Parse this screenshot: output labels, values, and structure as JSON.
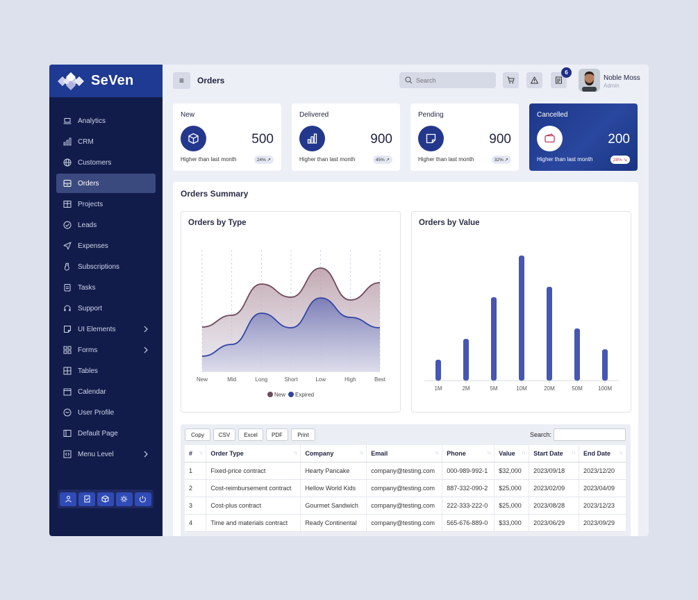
{
  "brand": {
    "name": "SeVen"
  },
  "sidebar": {
    "items": [
      {
        "label": "Analytics",
        "icon": "laptop-icon"
      },
      {
        "label": "CRM",
        "icon": "bar-chart-icon"
      },
      {
        "label": "Customers",
        "icon": "globe-icon"
      },
      {
        "label": "Orders",
        "icon": "inbox-icon",
        "active": true
      },
      {
        "label": "Projects",
        "icon": "kanban-icon"
      },
      {
        "label": "Leads",
        "icon": "check-circle-icon"
      },
      {
        "label": "Expenses",
        "icon": "send-icon"
      },
      {
        "label": "Subscriptions",
        "icon": "hand-icon"
      },
      {
        "label": "Tasks",
        "icon": "clipboard-icon"
      },
      {
        "label": "Support",
        "icon": "headset-icon"
      },
      {
        "label": "UI Elements",
        "icon": "sticky-note-icon",
        "has_submenu": true
      },
      {
        "label": "Forms",
        "icon": "grid-icon",
        "has_submenu": true
      },
      {
        "label": "Tables",
        "icon": "table-icon"
      },
      {
        "label": "Calendar",
        "icon": "calendar-icon"
      },
      {
        "label": "User Profile",
        "icon": "user-circle-icon"
      },
      {
        "label": "Default Page",
        "icon": "page-icon"
      },
      {
        "label": "Menu Level",
        "icon": "code-icon",
        "has_submenu": true
      }
    ],
    "footer_buttons": [
      "user-icon",
      "clipboard-icon",
      "box-icon",
      "gear-icon",
      "power-icon"
    ]
  },
  "header": {
    "title": "Orders",
    "search_placeholder": "Search",
    "notification_count": "6",
    "user_name": "Noble Moss",
    "user_role": "Admin"
  },
  "cards": [
    {
      "title": "New",
      "value": "500",
      "footer": "Higher than last month",
      "percent": "24% ↗",
      "icon": "box-icon"
    },
    {
      "title": "Delivered",
      "value": "900",
      "footer": "Higher than last month",
      "percent": "45% ↗",
      "icon": "bar-chart-icon"
    },
    {
      "title": "Pending",
      "value": "900",
      "footer": "Higher than last month",
      "percent": "32% ↗",
      "icon": "sticky-note-icon"
    },
    {
      "title": "Cancelled",
      "value": "200",
      "footer": "Higher than last month",
      "percent": "28% ↘",
      "icon": "wallet-icon"
    }
  ],
  "summary": {
    "title": "Orders Summary"
  },
  "chart_data": [
    {
      "type": "area",
      "title": "Orders by Type",
      "categories": [
        "New",
        "Mid",
        "Long",
        "Short",
        "Low",
        "High",
        "Best"
      ],
      "series": [
        {
          "name": "New",
          "values": [
            64,
            81,
            126,
            107,
            149,
            103,
            128
          ],
          "color": "#6e4a5c"
        },
        {
          "name": "Expired",
          "values": [
            22,
            39,
            84,
            63,
            106,
            78,
            63
          ],
          "color": "#3346a5"
        }
      ],
      "ylim": [
        0,
        175
      ],
      "grid": "vertical-dashed",
      "legend": "bottom"
    },
    {
      "type": "bar",
      "title": "Orders by Value",
      "categories": [
        "1M",
        "2M",
        "5M",
        "10M",
        "20M",
        "50M",
        "100M"
      ],
      "values": [
        30,
        60,
        120,
        180,
        135,
        75,
        45
      ],
      "ylim": [
        0,
        180
      ],
      "color": "#4557b2"
    }
  ],
  "table": {
    "buttons": [
      "Copy",
      "CSV",
      "Excel",
      "PDF",
      "Print"
    ],
    "search_label": "Search:",
    "columns": [
      "#",
      "Order Type",
      "Company",
      "Email",
      "Phone",
      "Value",
      "Start Date",
      "End Date"
    ],
    "rows": [
      [
        "1",
        "Fixed-price contract",
        "Hearty Pancake",
        "company@testing.com",
        "000-989-992-1",
        "$32,000",
        "2023/09/18",
        "2023/12/20"
      ],
      [
        "2",
        "Cost-reimbursement contract",
        "Hellow World Kids",
        "company@testing.com",
        "887-332-090-2",
        "$25,000",
        "2023/02/09",
        "2023/04/09"
      ],
      [
        "3",
        "Cost-plus contract",
        "Gourmet Sandwich",
        "company@testing.com",
        "222-333-222-0",
        "$25,000",
        "2023/08/28",
        "2023/12/23"
      ],
      [
        "4",
        "Time and materials contract",
        "Ready Continental",
        "company@testing.com",
        "565-676-889-0",
        "$33,000",
        "2023/06/29",
        "2023/09/29"
      ]
    ]
  }
}
